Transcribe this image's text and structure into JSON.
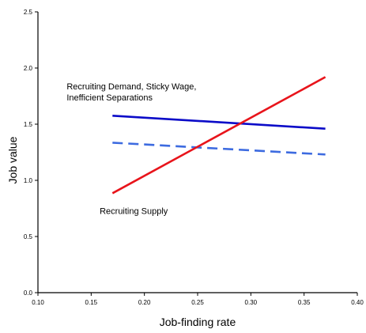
{
  "chart_data": {
    "type": "line",
    "xlabel": "Job-finding rate",
    "ylabel": "Job value",
    "xlim": [
      0.1,
      0.4
    ],
    "ylim": [
      0.0,
      2.5
    ],
    "xticks": [
      "0.10",
      "0.15",
      "0.20",
      "0.25",
      "0.30",
      "0.35",
      "0.40"
    ],
    "yticks": [
      "0.0",
      "0.5",
      "1.0",
      "1.5",
      "2.0",
      "2.5"
    ],
    "grid": false,
    "series": [
      {
        "x": [
          0.17,
          0.37
        ],
        "y": [
          1.575,
          1.46
        ],
        "color": "#0b0bc8",
        "style": "solid"
      },
      {
        "x": [
          0.17,
          0.37
        ],
        "y": [
          1.335,
          1.23
        ],
        "color": "#3d6be0",
        "style": "dashed"
      },
      {
        "x": [
          0.17,
          0.37
        ],
        "y": [
          0.885,
          1.92
        ],
        "color": "#e8141b",
        "style": "solid"
      }
    ],
    "annotations": [
      {
        "lines": [
          "Recruiting Demand, Sticky Wage,",
          "Inefficient Separations"
        ],
        "x": 0.127,
        "y": 1.81
      },
      {
        "lines": [
          "Recruiting Supply"
        ],
        "x": 0.158,
        "y": 0.7
      }
    ]
  }
}
